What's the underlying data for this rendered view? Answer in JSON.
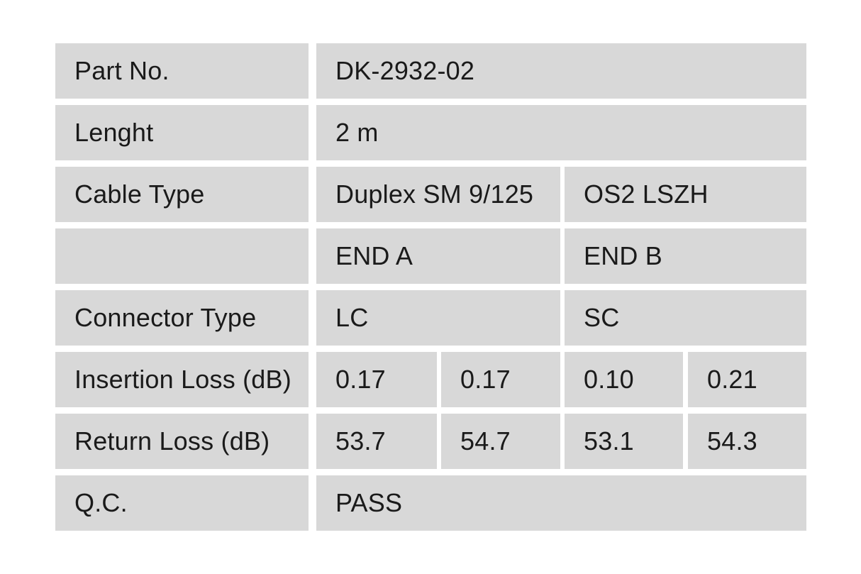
{
  "colors": {
    "page_background": "#ffffff",
    "cell_background": "#d8d8d8",
    "text": "#1a1a1a"
  },
  "table": {
    "rows": {
      "part_no": {
        "label": "Part No.",
        "value": "DK-2932-02"
      },
      "length": {
        "label": "Lenght",
        "value": "2 m"
      },
      "cable_type": {
        "label": "Cable Type",
        "value_a": "Duplex SM 9/125",
        "value_b": "OS2 LSZH"
      },
      "ends": {
        "label": "",
        "value_a": "END A",
        "value_b": "END B"
      },
      "connector_type": {
        "label": "Connector Type",
        "value_a": "LC",
        "value_b": "SC"
      },
      "insertion_loss": {
        "label": "Insertion Loss (dB)",
        "values": [
          "0.17",
          "0.17",
          "0.10",
          "0.21"
        ]
      },
      "return_loss": {
        "label": "Return Loss (dB)",
        "values": [
          "53.7",
          "54.7",
          "53.1",
          "54.3"
        ]
      },
      "qc": {
        "label": "Q.C.",
        "value": "PASS"
      }
    }
  }
}
